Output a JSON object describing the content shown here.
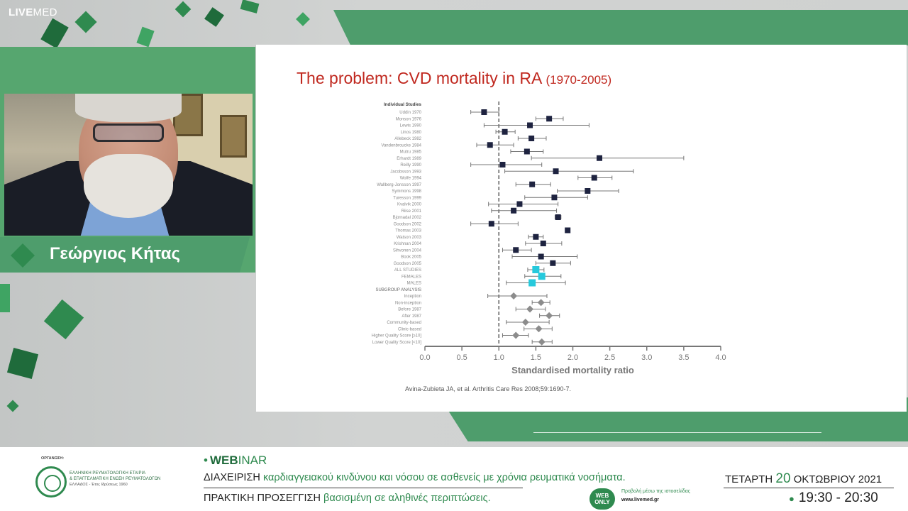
{
  "brand": {
    "logo_bold": "LIVE",
    "logo_thin": "MED"
  },
  "speaker": {
    "name": "Γεώργιος Κήτας"
  },
  "slide": {
    "title": "The problem: CVD mortality in RA",
    "title_sub": "(1970-2005)",
    "citation": "Avina-Zubieta JA, et al. Arthritis Care Res 2008;59:1690-7."
  },
  "chart_data": {
    "type": "forest",
    "xlabel": "Standardised mortality ratio",
    "xlim": [
      0.0,
      4.0
    ],
    "xticks": [
      "0.0",
      "0.5",
      "1.0",
      "1.5",
      "2.0",
      "2.5",
      "3.0",
      "3.5",
      "4.0"
    ],
    "reference_line": 1.0,
    "header": "Individual Studies",
    "rows": [
      {
        "label": "Uddin 1970",
        "kind": "study",
        "est": 0.8,
        "lo": 0.62,
        "hi": 1.0
      },
      {
        "label": "Monson 1976",
        "kind": "study",
        "est": 1.68,
        "lo": 1.5,
        "hi": 1.87
      },
      {
        "label": "Lewis 1990",
        "kind": "study",
        "est": 1.42,
        "lo": 0.8,
        "hi": 2.22
      },
      {
        "label": "Linos 1980",
        "kind": "study",
        "est": 1.08,
        "lo": 0.96,
        "hi": 1.22
      },
      {
        "label": "Allebeck 1982",
        "kind": "study",
        "est": 1.44,
        "lo": 1.26,
        "hi": 1.64
      },
      {
        "label": "Vandenbroucke 1984",
        "kind": "study",
        "est": 0.88,
        "lo": 0.7,
        "hi": 1.2
      },
      {
        "label": "Mutru 1985",
        "kind": "study",
        "est": 1.38,
        "lo": 1.16,
        "hi": 1.6
      },
      {
        "label": "Erhardt 1989",
        "kind": "study",
        "est": 2.36,
        "lo": 1.44,
        "hi": 3.5
      },
      {
        "label": "Reilly 1990",
        "kind": "study",
        "est": 1.05,
        "lo": 0.62,
        "hi": 1.58
      },
      {
        "label": "Jacobsson 1993",
        "kind": "study",
        "est": 1.77,
        "lo": 1.08,
        "hi": 2.82
      },
      {
        "label": "Wolfe 1994",
        "kind": "study",
        "est": 2.29,
        "lo": 2.07,
        "hi": 2.53
      },
      {
        "label": "Wallberg-Jonsson 1997",
        "kind": "study",
        "est": 1.45,
        "lo": 1.23,
        "hi": 1.7
      },
      {
        "label": "Symmons 1998",
        "kind": "study",
        "est": 2.2,
        "lo": 1.79,
        "hi": 2.62
      },
      {
        "label": "Turesson 1999",
        "kind": "study",
        "est": 1.75,
        "lo": 1.35,
        "hi": 2.2
      },
      {
        "label": "Kvalvik 2000",
        "kind": "study",
        "est": 1.28,
        "lo": 0.86,
        "hi": 1.8
      },
      {
        "label": "Riise 2001",
        "kind": "study",
        "est": 1.2,
        "lo": 0.9,
        "hi": 1.78
      },
      {
        "label": "Bjornadal 2002",
        "kind": "study",
        "est": 1.8,
        "lo": 1.76,
        "hi": 1.84
      },
      {
        "label": "Goodson 2002",
        "kind": "study",
        "est": 0.9,
        "lo": 0.62,
        "hi": 1.26
      },
      {
        "label": "Thomas 2003",
        "kind": "study",
        "est": 1.93,
        "lo": 1.9,
        "hi": 1.96
      },
      {
        "label": "Watson 2003",
        "kind": "study",
        "est": 1.5,
        "lo": 1.4,
        "hi": 1.6
      },
      {
        "label": "Krishnan 2004",
        "kind": "study",
        "est": 1.6,
        "lo": 1.36,
        "hi": 1.85
      },
      {
        "label": "Sihvonen 2004",
        "kind": "study",
        "est": 1.23,
        "lo": 1.05,
        "hi": 1.44
      },
      {
        "label": "Book 2005",
        "kind": "study",
        "est": 1.57,
        "lo": 1.18,
        "hi": 2.06
      },
      {
        "label": "Goodson 2005",
        "kind": "study",
        "est": 1.73,
        "lo": 1.5,
        "hi": 1.97
      },
      {
        "label": "ALL STUDIES",
        "kind": "pooled",
        "est": 1.5,
        "lo": 1.39,
        "hi": 1.61
      },
      {
        "label": "FEMALES",
        "kind": "pooled",
        "est": 1.58,
        "lo": 1.35,
        "hi": 1.84
      },
      {
        "label": "MALES",
        "kind": "pooled",
        "est": 1.45,
        "lo": 1.1,
        "hi": 1.9
      },
      {
        "label": "SUBGROUP ANALYSIS",
        "kind": "header"
      },
      {
        "label": "Inception",
        "kind": "subgroup",
        "est": 1.2,
        "lo": 0.85,
        "hi": 1.65
      },
      {
        "label": "Non-inception",
        "kind": "subgroup",
        "est": 1.57,
        "lo": 1.45,
        "hi": 1.69
      },
      {
        "label": "Before 1987",
        "kind": "subgroup",
        "est": 1.42,
        "lo": 1.23,
        "hi": 1.63
      },
      {
        "label": "After 1987",
        "kind": "subgroup",
        "est": 1.68,
        "lo": 1.55,
        "hi": 1.82
      },
      {
        "label": "Community-based",
        "kind": "subgroup",
        "est": 1.36,
        "lo": 1.1,
        "hi": 1.68
      },
      {
        "label": "Clinic-based",
        "kind": "subgroup",
        "est": 1.54,
        "lo": 1.34,
        "hi": 1.72
      },
      {
        "label": "Higher Quality Score [≥10]",
        "kind": "subgroup",
        "est": 1.23,
        "lo": 1.05,
        "hi": 1.4
      },
      {
        "label": "Lower Quality Score [<10]",
        "kind": "subgroup",
        "est": 1.58,
        "lo": 1.45,
        "hi": 1.72
      }
    ],
    "colors": {
      "study": "#1e2340",
      "pooled": "#26c9dc",
      "subgroup": "#8c8c8c",
      "axis": "#777777"
    }
  },
  "footer": {
    "organizer_label": "ΟΡΓΑΝΩΣΗ:",
    "org_line1": "ΕΛΛΗΝΙΚΗ ΡΕΥΜΑΤΟΛΟΓΙΚΗ ΕΤΑΙΡΙΑ",
    "org_line2": "& ΕΠΑΓΓΕΛΜΑΤΙΚΗ ΕΝΩΣΗ ΡΕΥΜΑΤΟΛΟΓΩΝ",
    "org_line3": "ΕΛΛΑΔΟΣ - Έτος Ιδρύσεως 1960",
    "webinar_bold": "WEB",
    "webinar_thin": "INAR",
    "line1_dark": "ΔΙΑΧΕΙΡΙΣΗ",
    "line1_green": "καρδιαγγειακού κινδύνου και νόσου σε ασθενείς με χρόνια ρευματικά νοσήματα.",
    "line2_dark": "ΠΡΑΚΤΙΚΗ ΠΡΟΣΕΓΓΙΣΗ",
    "line2_green": "βασισμένη σε αληθινές περιπτώσεις.",
    "badge_top": "WEB",
    "badge_bottom": "ONLY",
    "web_caption": "Προβολή μέσω της ιστοσελίδας",
    "web_url": "www.livemed.gr",
    "day": "ΤΕΤΑΡΤΗ",
    "date_num": "20",
    "month_year": "ΟΚΤΩΒΡΙΟΥ 2021",
    "time": "19:30 - 20:30"
  }
}
